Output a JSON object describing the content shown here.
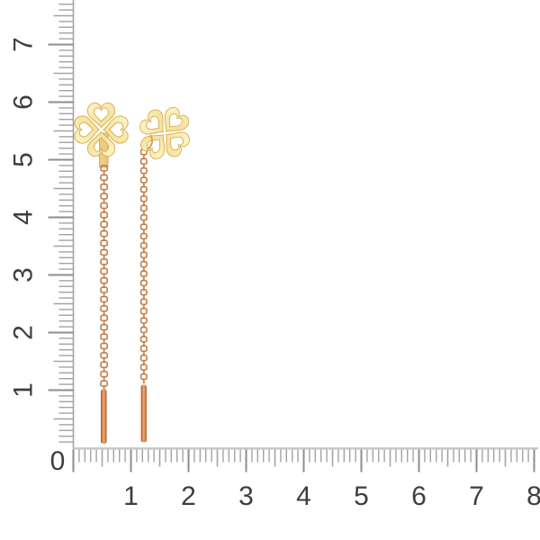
{
  "scene": {
    "description": "Pair of gold four-leaf clover threader earrings with heart-shaped cutouts, hanging cable chains and bar ends, photographed against centimeter rulers",
    "background_color": "#ffffff"
  },
  "vertical_ruler": {
    "labels": [
      "1",
      "2",
      "3",
      "4",
      "5",
      "6",
      "7"
    ],
    "units_per_64px": 1,
    "orientation": "vertical"
  },
  "horizontal_ruler": {
    "origin_label": "0",
    "labels": [
      "1",
      "2",
      "3",
      "4",
      "5",
      "6",
      "7",
      "8"
    ],
    "orientation": "horizontal"
  },
  "ruler_style": {
    "baseline_color": "#c6c6c6",
    "tick_color": "#a3a3a3",
    "major_tick_color": "#8d8d8d",
    "label_color": "#3e3e3e"
  },
  "earrings": {
    "count": 2,
    "charm": "four-leaf clover with heart cutouts",
    "colors": {
      "clover_light": "#fdf5c8",
      "clover_mid": "#f1da8e",
      "clover_edge": "#d6a94c",
      "chain_outline": "#bd7742",
      "chain_fill": "#d18a52",
      "bar_dark": "#a2582e",
      "bar_mid": "#d8854e",
      "bar_light": "#f2ab74",
      "post_fill": "#eeca82",
      "post_edge": "#c49a4a",
      "hook": "#d9a85c"
    }
  }
}
